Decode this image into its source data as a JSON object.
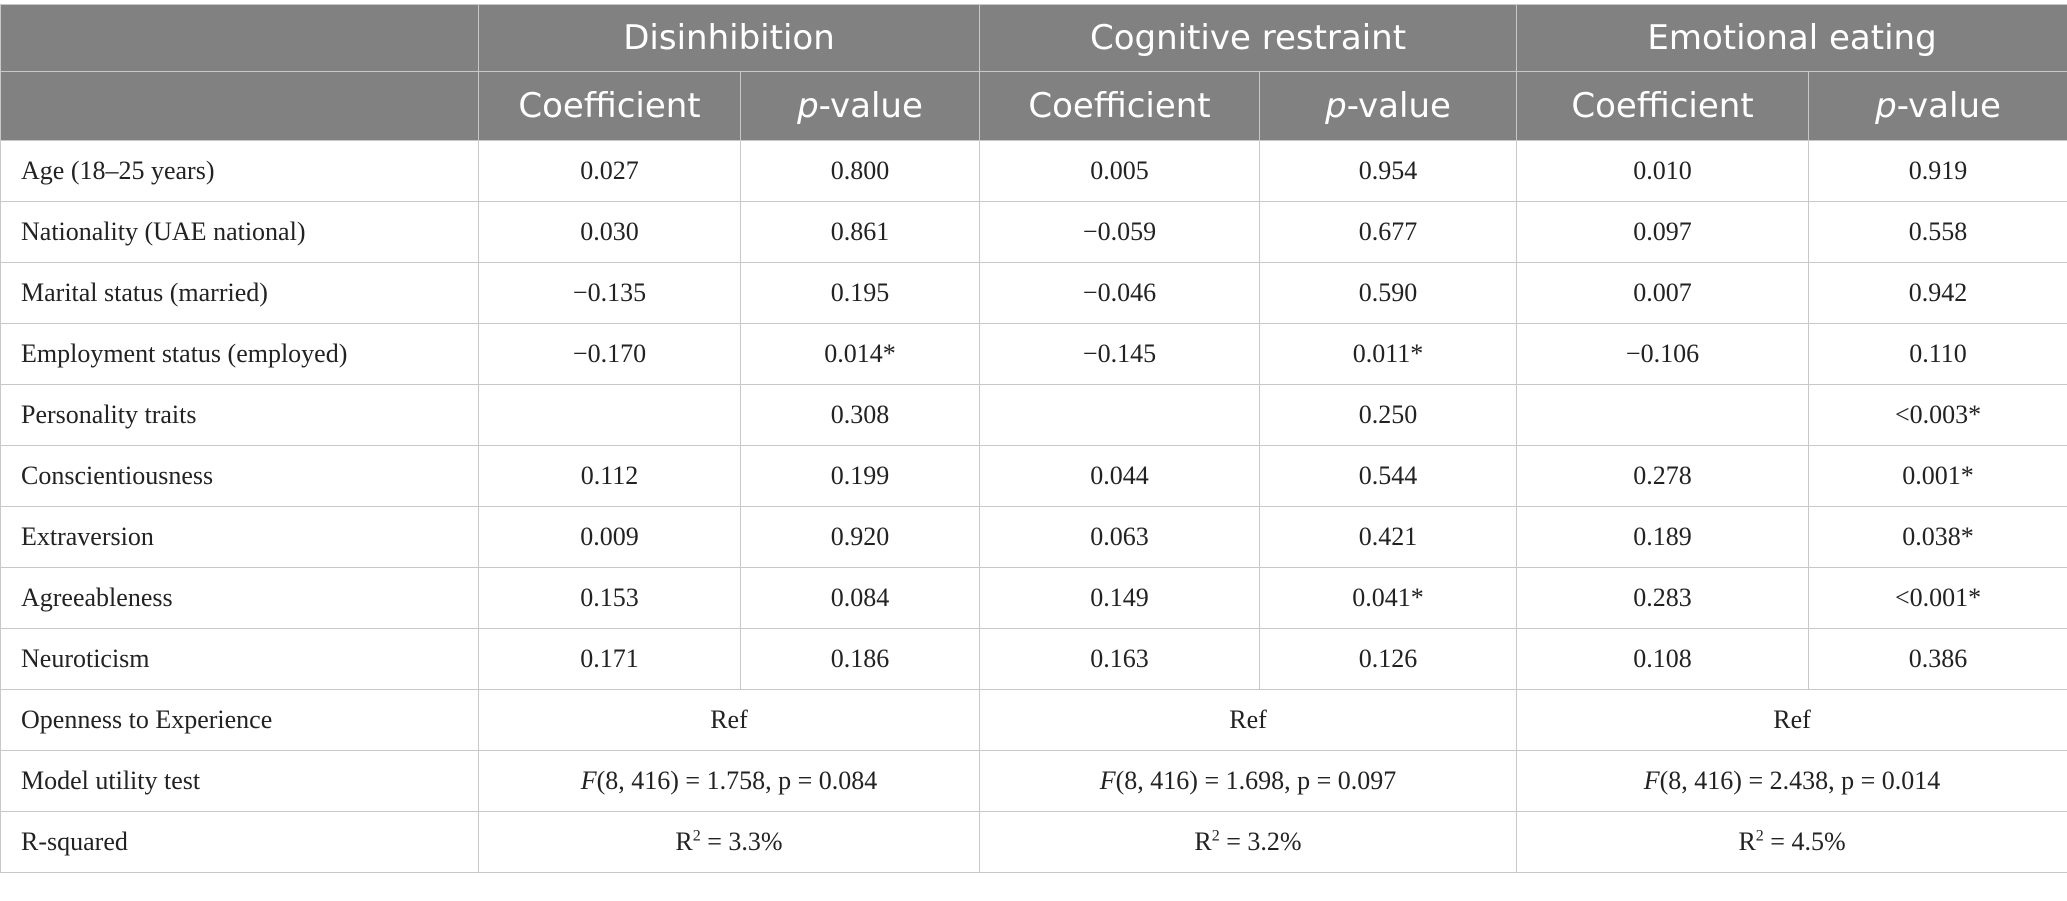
{
  "header": {
    "groups": [
      "Disinhibition",
      "Cognitive restraint",
      "Emotional eating"
    ],
    "coefficient_label": "Coefficient",
    "p_prefix": "p",
    "p_suffix": "-value"
  },
  "rows": [
    {
      "label": "Age (18–25 years)",
      "cells": [
        "0.027",
        "0.800",
        "0.005",
        "0.954",
        "0.010",
        "0.919"
      ]
    },
    {
      "label": "Nationality (UAE national)",
      "cells": [
        "0.030",
        "0.861",
        "−0.059",
        "0.677",
        "0.097",
        "0.558"
      ]
    },
    {
      "label": "Marital status (married)",
      "cells": [
        "−0.135",
        "0.195",
        "−0.046",
        "0.590",
        "0.007",
        "0.942"
      ]
    },
    {
      "label": "Employment status (employed)",
      "cells": [
        "−0.170",
        "0.014*",
        "−0.145",
        "0.011*",
        "−0.106",
        "0.110"
      ]
    },
    {
      "label": "Personality traits",
      "cells": [
        "",
        "0.308",
        "",
        "0.250",
        "",
        "<0.003*"
      ]
    },
    {
      "label": "Conscientiousness",
      "cells": [
        "0.112",
        "0.199",
        "0.044",
        "0.544",
        "0.278",
        "0.001*"
      ]
    },
    {
      "label": "Extraversion",
      "cells": [
        "0.009",
        "0.920",
        "0.063",
        "0.421",
        "0.189",
        "0.038*"
      ]
    },
    {
      "label": "Agreeableness",
      "cells": [
        "0.153",
        "0.084",
        "0.149",
        "0.041*",
        "0.283",
        "<0.001*"
      ]
    },
    {
      "label": "Neuroticism",
      "cells": [
        "0.171",
        "0.186",
        "0.163",
        "0.126",
        "0.108",
        "0.386"
      ]
    }
  ],
  "ref_row": {
    "label": "Openness to Experience",
    "values": [
      "Ref",
      "Ref",
      "Ref"
    ]
  },
  "model_row": {
    "label": "Model utility test",
    "values": [
      {
        "f": "F",
        "rest": "(8, 416) = 1.758, p = 0.084"
      },
      {
        "f": "F",
        "rest": "(8, 416) = 1.698, p = 0.097"
      },
      {
        "f": "F",
        "rest": "(8, 416) = 2.438, p = 0.014"
      }
    ]
  },
  "r2_row": {
    "label": "R-squared",
    "values": [
      {
        "r": "R",
        "sup": "2",
        "rest": " = 3.3%"
      },
      {
        "r": "R",
        "sup": "2",
        "rest": " = 3.2%"
      },
      {
        "r": "R",
        "sup": "2",
        "rest": " = 4.5%"
      }
    ]
  }
}
